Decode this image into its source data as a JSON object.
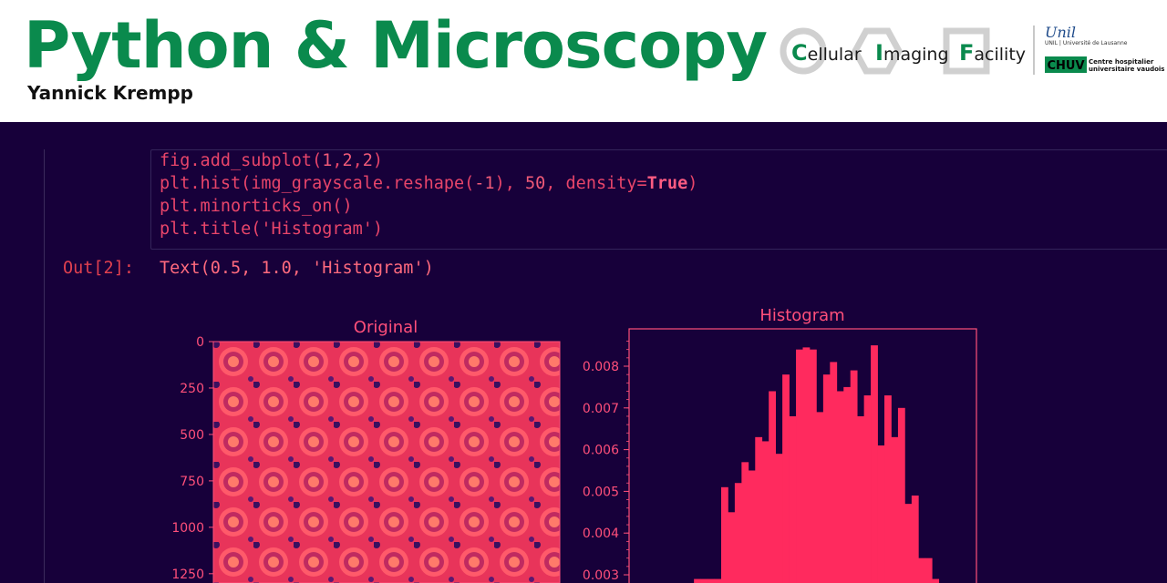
{
  "header": {
    "title": "Python & Microscopy",
    "author": "Yannick Krempp",
    "facility": {
      "c_letter": "C",
      "c_rest": "ellular",
      "i_letter": "I",
      "i_rest": "maging",
      "f_letter": "F",
      "f_rest": "acility"
    },
    "unil_logo": "Unil",
    "unil_sub": "UNIL | Université de Lausanne",
    "chuv_logo": "CHUV",
    "chuv_line1": "Centre hospitalier",
    "chuv_line2": "universitaire vaudois"
  },
  "notebook": {
    "code_lines": [
      "fig.add_subplot(1,2,2)",
      "plt.hist(img_grayscale.reshape(-1), 50, density=True)",
      "plt.minorticks_on()",
      "plt.title('Histogram')"
    ],
    "output_prompt": "Out[2]:",
    "output_text": "Text(0.5, 1.0, 'Histogram')"
  },
  "colors": {
    "accent": "#ff2a5e",
    "background": "#17003a",
    "brand_green": "#0a8a4d"
  },
  "chart_data": [
    {
      "type": "heatmap",
      "title": "Original",
      "ylabel": "",
      "xlabel": "",
      "y_ticks": [
        "0",
        "250",
        "500",
        "750",
        "1000",
        "1250"
      ],
      "ylim": [
        1300,
        0
      ]
    },
    {
      "type": "bar",
      "title": "Histogram",
      "xlabel": "",
      "ylabel": "",
      "y_ticks": [
        "0.008",
        "0.007",
        "0.006",
        "0.005",
        "0.004",
        "0.003"
      ],
      "ylim": [
        0.0028,
        0.0086
      ],
      "bins": 50,
      "values": [
        0,
        0,
        0,
        0,
        0,
        0,
        0,
        0,
        0,
        0.0029,
        0.0029,
        0.0029,
        0.0029,
        0.0051,
        0.0045,
        0.0052,
        0.0057,
        0.0055,
        0.0063,
        0.0062,
        0.0074,
        0.0059,
        0.0078,
        0.0068,
        0.0084,
        0.00845,
        0.0084,
        0.0069,
        0.0078,
        0.0081,
        0.0074,
        0.0075,
        0.0079,
        0.0068,
        0.0073,
        0.0085,
        0.0061,
        0.0073,
        0.0063,
        0.007,
        0.0047,
        0.0049,
        0.0034,
        0.0034,
        0.0029,
        0,
        0,
        0,
        0,
        0
      ]
    }
  ]
}
